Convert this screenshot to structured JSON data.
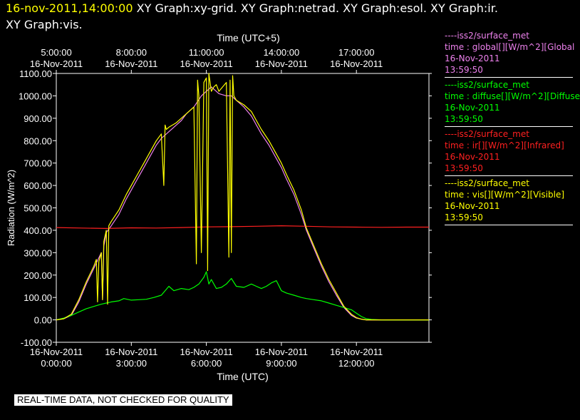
{
  "header": {
    "timestamp": "16-nov-2011,14:00:00",
    "graph_list_line1": "XY Graph:xy-grid.  XY Graph:netrad.  XY Graph:esol.  XY Graph:ir.",
    "graph_list_line2": "XY Graph:vis."
  },
  "legend": [
    {
      "source": "----iss2/surface_met",
      "variable": "time : global[][W/m^2][Global",
      "date": "16-Nov-2011",
      "time": "13:59:50",
      "color": "#ee82ee"
    },
    {
      "source": "----iss2/surface_met",
      "variable": "time : diffuse[][W/m^2][Diffuse",
      "date": "16-Nov-2011",
      "time": "13:59:50",
      "color": "#00ff00"
    },
    {
      "source": "----iss2/surface_met",
      "variable": "time : ir[][W/m^2][Infrared]",
      "date": "16-Nov-2011",
      "time": "13:59:50",
      "color": "#ff2020"
    },
    {
      "source": "----iss2/surface_met",
      "variable": "time : vis[][W/m^2][Visible]",
      "date": "16-Nov-2011",
      "time": "13:59:50",
      "color": "#ffff00"
    }
  ],
  "notice": "REAL-TIME DATA, NOT CHECKED FOR QUALITY",
  "chart_data": {
    "type": "line",
    "ylabel": "Radiation (W/m^2)",
    "xlabel_bottom": "Time (UTC)",
    "xlabel_top": "Time (UTC+5)",
    "ylim": [
      -100,
      1100
    ],
    "xlim_hours": [
      0,
      14.9
    ],
    "yticks": [
      "-100.00",
      "0.00",
      "100.00",
      "200.00",
      "300.00",
      "400.00",
      "500.00",
      "600.00",
      "700.00",
      "800.00",
      "900.00",
      "1000.00",
      "1100.00"
    ],
    "bottom_ticks": [
      {
        "hour": 0,
        "date": "16-Nov-2011",
        "time": "0:00:00"
      },
      {
        "hour": 3,
        "date": "16-Nov-2011",
        "time": "3:00:00"
      },
      {
        "hour": 6,
        "date": "16-Nov-2011",
        "time": "6:00:00"
      },
      {
        "hour": 9,
        "date": "16-Nov-2011",
        "time": "9:00:00"
      },
      {
        "hour": 12,
        "date": "16-Nov-2011",
        "time": "12:00:00"
      }
    ],
    "top_ticks": [
      {
        "hour": 0,
        "time": "5:00:00",
        "date": "16-Nov-2011"
      },
      {
        "hour": 3,
        "time": "8:00:00",
        "date": "16-Nov-2011"
      },
      {
        "hour": 6,
        "time": "11:00:00",
        "date": "16-Nov-2011"
      },
      {
        "hour": 9,
        "time": "14:00:00",
        "date": "16-Nov-2011"
      },
      {
        "hour": 12,
        "time": "17:00:00",
        "date": "16-Nov-2011"
      }
    ],
    "series": [
      {
        "name": "global",
        "color": "#ee82ee",
        "x": [
          0,
          0.3,
          0.6,
          0.9,
          1.2,
          1.5,
          1.8,
          1.85,
          1.9,
          2.0,
          2.2,
          2.5,
          2.8,
          3.0,
          3.2,
          3.5,
          3.8,
          4.0,
          4.2,
          4.5,
          4.8,
          5.0,
          5.2,
          5.5,
          5.8,
          6.0,
          6.2,
          6.5,
          6.8,
          7.0,
          7.2,
          7.5,
          7.8,
          8.0,
          8.2,
          8.5,
          8.8,
          9.0,
          9.2,
          9.5,
          9.8,
          10.0,
          10.3,
          10.6,
          10.9,
          11.2,
          11.5,
          11.8,
          12.0,
          12.2,
          12.4,
          12.6,
          13.0,
          13.5,
          14.0,
          14.9
        ],
        "y": [
          0,
          5,
          20,
          80,
          160,
          230,
          300,
          90,
          330,
          390,
          420,
          470,
          540,
          580,
          620,
          680,
          740,
          780,
          810,
          840,
          870,
          890,
          920,
          950,
          1000,
          1020,
          1040,
          1010,
          1000,
          1000,
          980,
          950,
          910,
          870,
          830,
          780,
          720,
          680,
          630,
          560,
          470,
          400,
          320,
          240,
          170,
          110,
          55,
          20,
          8,
          3,
          0,
          0,
          0,
          0,
          0,
          0
        ]
      },
      {
        "name": "diffuse",
        "color": "#00ff00",
        "x": [
          0,
          0.3,
          0.6,
          0.9,
          1.2,
          1.5,
          1.8,
          2.0,
          2.2,
          2.5,
          2.7,
          3.0,
          3.3,
          3.6,
          3.9,
          4.2,
          4.5,
          4.7,
          5.0,
          5.3,
          5.5,
          5.7,
          5.9,
          6.0,
          6.1,
          6.2,
          6.4,
          6.6,
          6.8,
          7.0,
          7.2,
          7.5,
          7.8,
          8.0,
          8.2,
          8.4,
          8.6,
          8.8,
          9.0,
          9.2,
          9.5,
          9.8,
          10.0,
          10.3,
          10.6,
          10.9,
          11.2,
          11.5,
          11.8,
          12.0,
          12.2,
          12.4,
          12.6,
          13.0,
          13.5,
          14.0,
          14.9
        ],
        "y": [
          0,
          8,
          20,
          35,
          50,
          60,
          70,
          75,
          80,
          85,
          95,
          88,
          90,
          92,
          100,
          110,
          150,
          130,
          140,
          135,
          145,
          160,
          190,
          215,
          160,
          180,
          140,
          145,
          160,
          185,
          150,
          145,
          160,
          150,
          140,
          150,
          165,
          175,
          130,
          120,
          110,
          100,
          95,
          90,
          85,
          75,
          65,
          55,
          45,
          30,
          15,
          5,
          2,
          0,
          0,
          0,
          0
        ]
      },
      {
        "name": "ir",
        "color": "#ff2020",
        "x": [
          0,
          1,
          2,
          3,
          4,
          5,
          6,
          7,
          8,
          9,
          10,
          11,
          12,
          13,
          14,
          14.9
        ],
        "y": [
          412,
          410,
          408,
          411,
          410,
          412,
          415,
          416,
          418,
          420,
          418,
          415,
          414,
          413,
          414,
          414
        ]
      },
      {
        "name": "vis",
        "color": "#ffff00",
        "x": [
          0,
          0.3,
          0.6,
          0.9,
          1.2,
          1.5,
          1.6,
          1.65,
          1.7,
          1.8,
          1.85,
          1.9,
          2.0,
          2.05,
          2.1,
          2.2,
          2.5,
          2.8,
          3.0,
          3.2,
          3.5,
          3.8,
          4.0,
          4.2,
          4.3,
          4.35,
          4.4,
          4.5,
          4.8,
          5.0,
          5.2,
          5.5,
          5.6,
          5.65,
          5.7,
          5.8,
          5.9,
          6.0,
          6.05,
          6.1,
          6.2,
          6.3,
          6.4,
          6.5,
          6.8,
          6.9,
          6.95,
          7.0,
          7.05,
          7.1,
          7.2,
          7.5,
          7.8,
          8.0,
          8.2,
          8.5,
          8.8,
          9.0,
          9.2,
          9.5,
          9.8,
          10.0,
          10.3,
          10.6,
          10.9,
          11.2,
          11.5,
          11.8,
          12.0,
          12.2,
          12.4,
          12.6,
          13.0,
          13.5,
          14.0,
          14.9
        ],
        "y": [
          0,
          5,
          25,
          90,
          170,
          240,
          270,
          80,
          260,
          300,
          90,
          350,
          400,
          70,
          420,
          440,
          490,
          560,
          600,
          640,
          700,
          760,
          800,
          830,
          600,
          870,
          850,
          860,
          880,
          900,
          920,
          950,
          250,
          1070,
          1000,
          300,
          1060,
          1080,
          220,
          1100,
          1020,
          1040,
          1050,
          1020,
          1060,
          280,
          1070,
          300,
          1090,
          1000,
          980,
          960,
          930,
          890,
          850,
          800,
          740,
          700,
          650,
          580,
          490,
          410,
          330,
          250,
          180,
          120,
          60,
          25,
          10,
          3,
          0,
          0,
          0,
          0,
          0,
          0
        ]
      }
    ]
  }
}
